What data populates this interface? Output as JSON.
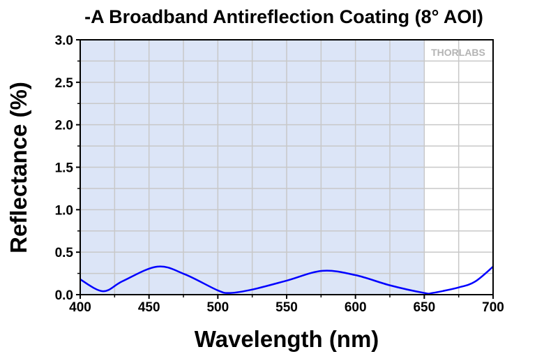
{
  "chart_data": {
    "type": "line",
    "title": "-A Broadband Antireflection Coating (8° AOI)",
    "xlabel": "Wavelength (nm)",
    "ylabel": "Reflectance (%)",
    "xlim": [
      400,
      700
    ],
    "ylim": [
      0,
      3.0
    ],
    "xticks": [
      "400",
      "450",
      "500",
      "550",
      "600",
      "650",
      "700"
    ],
    "yticks": [
      "0.0",
      "0.5",
      "1.0",
      "1.5",
      "2.0",
      "2.5",
      "3.0"
    ],
    "grid": true,
    "shaded_region": {
      "x": [
        400,
        650
      ],
      "color": "#dce5f7"
    },
    "watermark": "THORLABS",
    "series": [
      {
        "color": "#0000ff",
        "x": [
          400,
          416.5,
          431,
          456,
          476,
          500,
          509,
          525,
          550,
          576,
          600,
          625,
          650,
          656,
          675,
          687,
          700
        ],
        "y": [
          0.18,
          0.04,
          0.16,
          0.33,
          0.24,
          0.05,
          0.02,
          0.06,
          0.165,
          0.28,
          0.23,
          0.11,
          0.02,
          0.02,
          0.085,
          0.155,
          0.33
        ]
      }
    ]
  }
}
